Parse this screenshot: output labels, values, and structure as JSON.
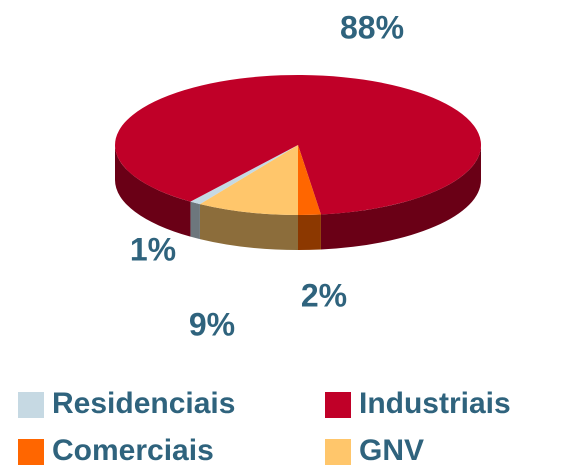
{
  "chart_data": {
    "type": "pie",
    "categories": [
      "Residenciais",
      "Industriais",
      "Comerciais",
      "GNV"
    ],
    "values": [
      1,
      88,
      2,
      9
    ],
    "value_labels": [
      "1%",
      "88%",
      "2%",
      "9%"
    ],
    "colors": [
      "#c6d9e3",
      "#c00028",
      "#ff6600",
      "#ffc66b"
    ]
  }
}
